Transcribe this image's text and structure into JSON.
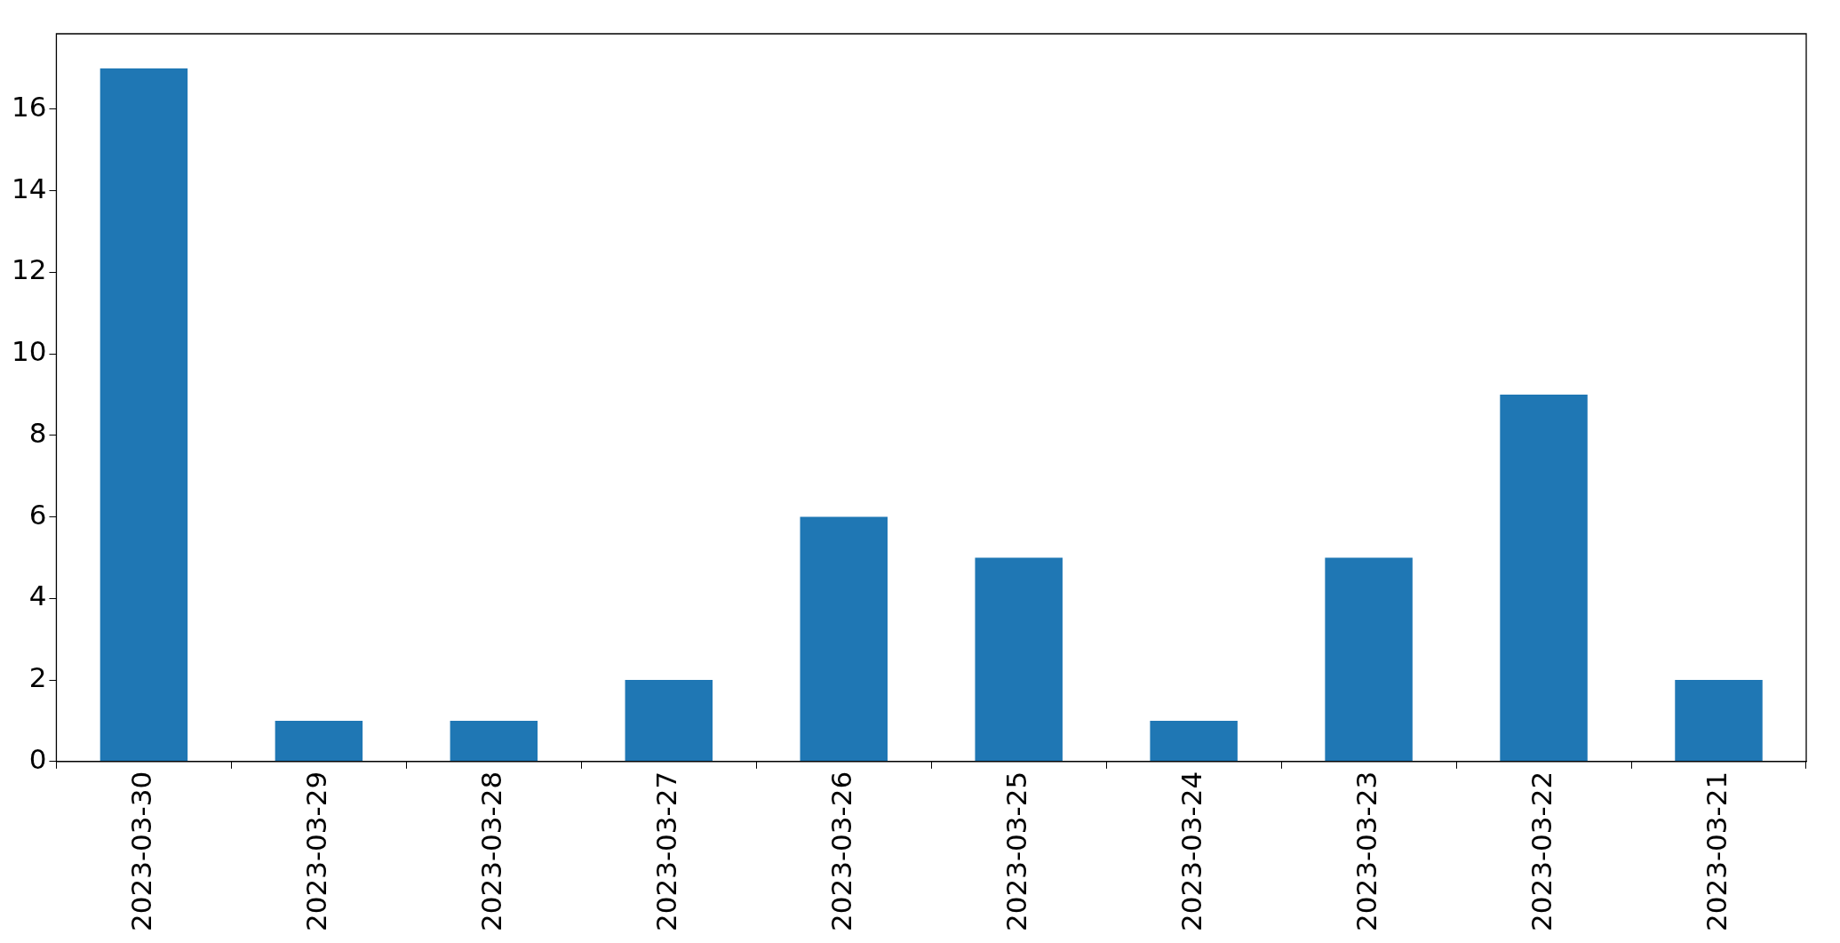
{
  "chart_data": {
    "type": "bar",
    "categories": [
      "2023-03-30",
      "2023-03-29",
      "2023-03-28",
      "2023-03-27",
      "2023-03-26",
      "2023-03-25",
      "2023-03-24",
      "2023-03-23",
      "2023-03-22",
      "2023-03-21"
    ],
    "values": [
      17,
      1,
      1,
      2,
      6,
      5,
      1,
      5,
      9,
      2
    ],
    "color": "#1f77b4",
    "ylim": [
      0,
      17.85
    ],
    "yticks": [
      0,
      2,
      4,
      6,
      8,
      10,
      12,
      14,
      16
    ],
    "grid": false,
    "legend": false
  }
}
